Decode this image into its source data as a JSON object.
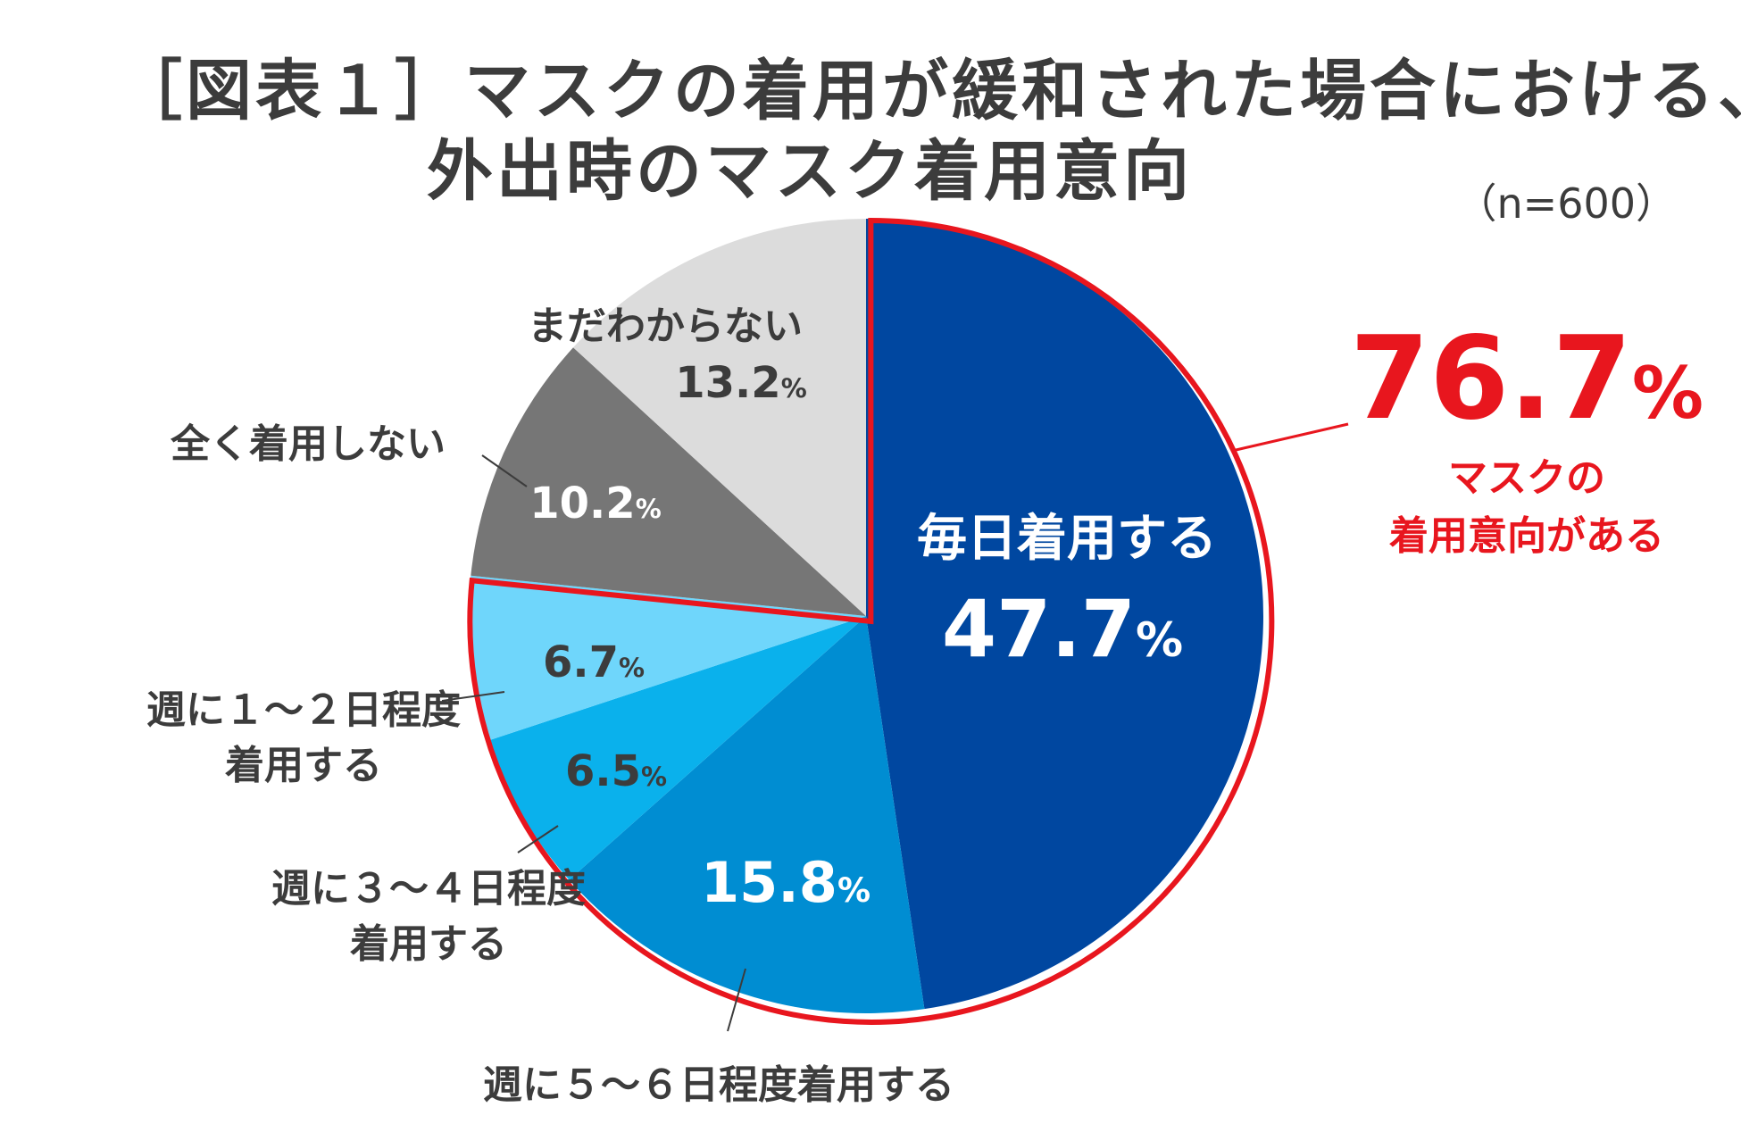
{
  "title_line1": "［図表１］マスクの着用が緩和された場合における、",
  "title_line2": "外出時のマスク着用意向",
  "sample_note": "（n=600）",
  "callout": {
    "value": "76.7",
    "unit": "%",
    "line1": "マスクの",
    "line2": "着用意向がある",
    "color": "#e8161e"
  },
  "chart_data": {
    "type": "pie",
    "unit": "%",
    "slices": [
      {
        "label": "毎日着用する",
        "label_lines": [
          "毎日着用する"
        ],
        "value": 47.7,
        "color": "#0047a0"
      },
      {
        "label": "週に５～６日程度着用する",
        "label_lines": [
          "週に５～６日程度着用する"
        ],
        "value": 15.8,
        "color": "#008dd2"
      },
      {
        "label": "週に３～４日程度着用する",
        "label_lines": [
          "週に３～４日程度",
          "着用する"
        ],
        "value": 6.5,
        "color": "#0ab1ec"
      },
      {
        "label": "週に１～２日程度着用する",
        "label_lines": [
          "週に１～２日程度",
          "着用する"
        ],
        "value": 6.7,
        "color": "#6fd6fb"
      },
      {
        "label": "全く着用しない",
        "label_lines": [
          "全く着用しない"
        ],
        "value": 10.2,
        "color": "#767676"
      },
      {
        "label": "まだわからない",
        "label_lines": [
          "まだわからない"
        ],
        "value": 13.2,
        "color": "#dcdcdc"
      }
    ],
    "highlight_group": [
      "毎日着用する",
      "週に５～６日程度着用する",
      "週に３～４日程度着用する",
      "週に１～２日程度着用する"
    ],
    "highlight_total": 76.7
  }
}
